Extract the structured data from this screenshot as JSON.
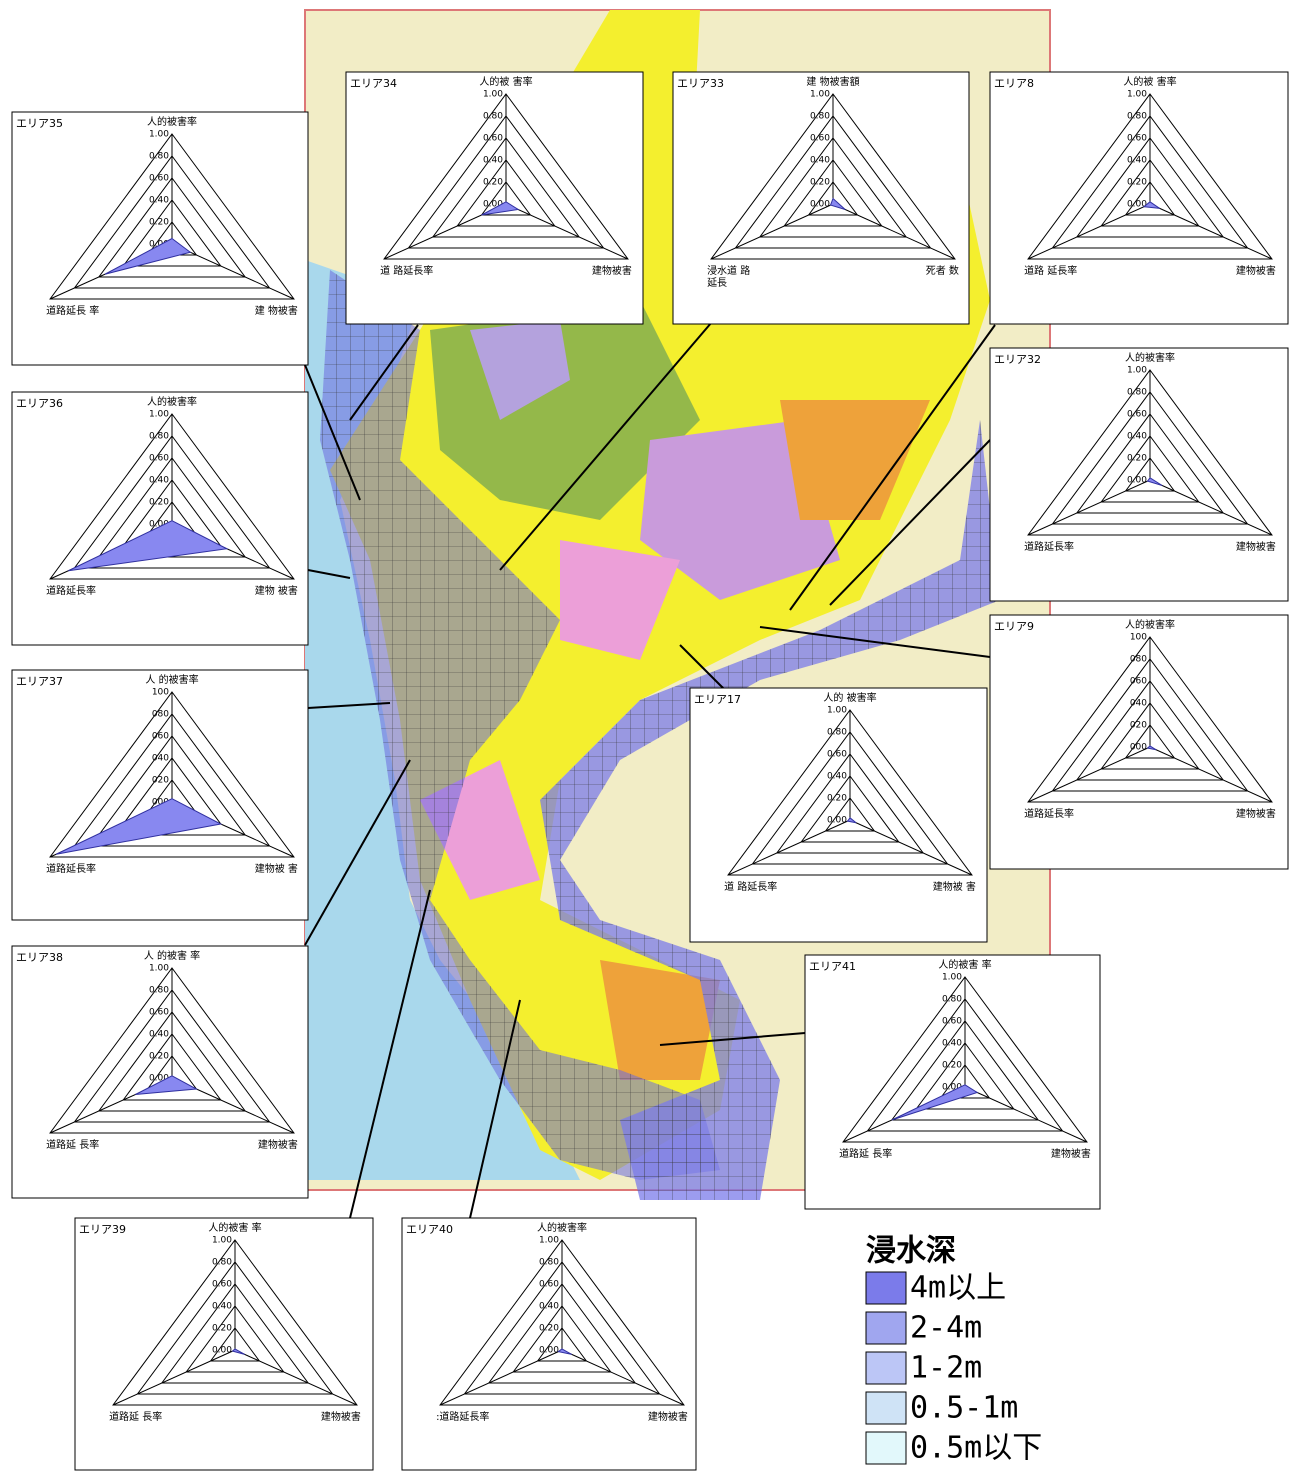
{
  "chart_data": [
    {
      "type": "radar",
      "title": "エリア35",
      "categories": [
        "人的被害率",
        "建 物被害",
        "道路延長 率"
      ],
      "values": [
        0.05,
        0.15,
        0.55
      ],
      "color": "#8888f0",
      "rlim": [
        0,
        1
      ],
      "rticks": [
        {
          "value": 1,
          "label": "1.00"
        },
        {
          "value": 0.8,
          "label": "0.80"
        },
        {
          "value": 0.6,
          "label": "0.60"
        },
        {
          "value": 0.4,
          "label": "0.40"
        },
        {
          "value": 0.2,
          "label": "0.20"
        },
        {
          "value": 0,
          "label": "0.00"
        }
      ]
    },
    {
      "type": "radar",
      "title": "エリア36",
      "categories": [
        "人的被害率",
        "建物 被害",
        "道路延長率"
      ],
      "values": [
        0.03,
        0.45,
        0.85
      ],
      "color": "#8888f0",
      "rlim": [
        0,
        1
      ],
      "rticks": [
        {
          "value": 1,
          "label": "1.00"
        },
        {
          "value": 0.8,
          "label": "0.80"
        },
        {
          "value": 0.6,
          "label": "0.60"
        },
        {
          "value": 0.4,
          "label": "0.40"
        },
        {
          "value": 0.2,
          "label": "0.20"
        },
        {
          "value": 0,
          "label": "0.00"
        }
      ]
    },
    {
      "type": "radar",
      "title": "エリア37",
      "categories": [
        "人 的被害率",
        "建物被 害",
        "道路延長率"
      ],
      "values": [
        0.03,
        0.4,
        0.95
      ],
      "color": "#8888f0",
      "rlim": [
        0,
        1
      ],
      "rticks": [
        {
          "value": 1,
          "label": "100"
        },
        {
          "value": 0.8,
          "label": "080"
        },
        {
          "value": 0.6,
          "label": "060"
        },
        {
          "value": 0.4,
          "label": "040"
        },
        {
          "value": 0.2,
          "label": "020"
        },
        {
          "value": 0,
          "label": "000"
        }
      ]
    },
    {
      "type": "radar",
      "title": "エリア38",
      "categories": [
        "人 的被害 率",
        "建物被害",
        "道路延 長率"
      ],
      "values": [
        0.02,
        0.2,
        0.3
      ],
      "color": "#8888f0",
      "rlim": [
        0,
        1
      ],
      "rticks": [
        {
          "value": 1,
          "label": "1.00"
        },
        {
          "value": 0.8,
          "label": "0.80"
        },
        {
          "value": 0.6,
          "label": "0.60"
        },
        {
          "value": 0.4,
          "label": "0.40"
        },
        {
          "value": 0.2,
          "label": "0.20"
        },
        {
          "value": 0,
          "label": "0.00"
        }
      ]
    },
    {
      "type": "radar",
      "title": "エリア39",
      "categories": [
        "人的被害 率",
        "建物被害",
        "道路延 長率"
      ],
      "values": [
        0.01,
        0.08,
        0.02
      ],
      "color": "#8888f0",
      "rlim": [
        0,
        1
      ],
      "rticks": [
        {
          "value": 1,
          "label": "1.00"
        },
        {
          "value": 0.8,
          "label": "0.80"
        },
        {
          "value": 0.6,
          "label": "0.60"
        },
        {
          "value": 0.4,
          "label": "0.40"
        },
        {
          "value": 0.2,
          "label": "0.20"
        },
        {
          "value": 0,
          "label": "0.00"
        }
      ]
    },
    {
      "type": "radar",
      "title": "エリア40",
      "categories": [
        "人的被害率",
        "建物被害",
        ":道路延長率"
      ],
      "values": [
        0.01,
        0.08,
        0.03
      ],
      "color": "#8888f0",
      "rlim": [
        0,
        1
      ],
      "rticks": [
        {
          "value": 1,
          "label": "1.00"
        },
        {
          "value": 0.8,
          "label": "0.80"
        },
        {
          "value": 0.6,
          "label": "0.60"
        },
        {
          "value": 0.4,
          "label": "0.40"
        },
        {
          "value": 0.2,
          "label": "0.20"
        },
        {
          "value": 0,
          "label": "0.00"
        }
      ]
    },
    {
      "type": "radar",
      "title": "エリア41",
      "categories": [
        "人的被害 率",
        "建物被害",
        "道路延 長率"
      ],
      "values": [
        0.02,
        0.1,
        0.6
      ],
      "color": "#8888f0",
      "rlim": [
        0,
        1
      ],
      "rticks": [
        {
          "value": 1,
          "label": "1.00"
        },
        {
          "value": 0.8,
          "label": "0.80"
        },
        {
          "value": 0.6,
          "label": "0.60"
        },
        {
          "value": 0.4,
          "label": "0.40"
        },
        {
          "value": 0.2,
          "label": "0.20"
        },
        {
          "value": 0,
          "label": "0.00"
        }
      ]
    },
    {
      "type": "radar",
      "title": "エリア34",
      "categories": [
        "人的被 害率",
        "建物被害",
        "道 路延長率"
      ],
      "values": [
        0.02,
        0.1,
        0.2
      ],
      "color": "#8888f0",
      "rlim": [
        0,
        1
      ],
      "rticks": [
        {
          "value": 1,
          "label": "1.00"
        },
        {
          "value": 0.8,
          "label": "0.80"
        },
        {
          "value": 0.6,
          "label": "0.60"
        },
        {
          "value": 0.4,
          "label": "0.40"
        },
        {
          "value": 0.2,
          "label": "0.20"
        },
        {
          "value": 0,
          "label": "0.00"
        }
      ]
    },
    {
      "type": "radar",
      "title": "エリア33",
      "categories": [
        "建 物被害額",
        "死者 数",
        "浸水道 路\n延長"
      ],
      "values": [
        0.05,
        0.1,
        0.02
      ],
      "color": "#8888f0",
      "rlim": [
        0,
        1
      ],
      "rticks": [
        {
          "value": 1,
          "label": "1.00"
        },
        {
          "value": 0.8,
          "label": "0.80"
        },
        {
          "value": 0.6,
          "label": "0.60"
        },
        {
          "value": 0.4,
          "label": "0.40"
        },
        {
          "value": 0.2,
          "label": "0.20"
        },
        {
          "value": 0,
          "label": "0.00"
        }
      ]
    },
    {
      "type": "radar",
      "title": "エリア8",
      "categories": [
        "人的被 害率",
        "建物被害",
        "道路 延長率"
      ],
      "values": [
        0.02,
        0.08,
        0.05
      ],
      "color": "#8888f0",
      "rlim": [
        0,
        1
      ],
      "rticks": [
        {
          "value": 1,
          "label": "1.00"
        },
        {
          "value": 0.8,
          "label": "0.80"
        },
        {
          "value": 0.6,
          "label": "0.60"
        },
        {
          "value": 0.4,
          "label": "0.40"
        },
        {
          "value": 0.2,
          "label": "0.20"
        },
        {
          "value": 0,
          "label": "0.00"
        }
      ]
    },
    {
      "type": "radar",
      "title": "エリア32",
      "categories": [
        "人的被害率",
        "建物被害",
        "道路延長率"
      ],
      "values": [
        0.02,
        0.1,
        0.02
      ],
      "color": "#8888f0",
      "rlim": [
        0,
        1
      ],
      "rticks": [
        {
          "value": 1,
          "label": "1.00"
        },
        {
          "value": 0.8,
          "label": "0.80"
        },
        {
          "value": 0.6,
          "label": "0.60"
        },
        {
          "value": 0.4,
          "label": "0.40"
        },
        {
          "value": 0.2,
          "label": "0.20"
        },
        {
          "value": 0,
          "label": "0.00"
        }
      ]
    },
    {
      "type": "radar",
      "title": "エリア9",
      "categories": [
        "人的被害率",
        "建物被害",
        "道路延長率"
      ],
      "values": [
        0.01,
        0.05,
        0.02
      ],
      "color": "#8888f0",
      "rlim": [
        0,
        1
      ],
      "rticks": [
        {
          "value": 1,
          "label": "100"
        },
        {
          "value": 0.8,
          "label": "080"
        },
        {
          "value": 0.6,
          "label": "060"
        },
        {
          "value": 0.4,
          "label": "040"
        },
        {
          "value": 0.2,
          "label": "020"
        },
        {
          "value": 0,
          "label": "000"
        }
      ]
    },
    {
      "type": "radar",
      "title": "エリア17",
      "categories": [
        "人的 被害率",
        "建物被 害",
        "道 路延長率"
      ],
      "values": [
        0.02,
        0.05,
        0.02
      ],
      "color": "#8888f0",
      "rlim": [
        0,
        1
      ],
      "rticks": [
        {
          "value": 1,
          "label": "1.00"
        },
        {
          "value": 0.8,
          "label": "0.80"
        },
        {
          "value": 0.6,
          "label": "0.60"
        },
        {
          "value": 0.4,
          "label": "0.40"
        },
        {
          "value": 0.2,
          "label": "0.20"
        },
        {
          "value": 0,
          "label": "0.00"
        }
      ]
    }
  ],
  "legend": {
    "title": "浸水深",
    "items": [
      {
        "label": "4m以上",
        "color": "#7b7bea"
      },
      {
        "label": "2-4m",
        "color": "#a0a6ef"
      },
      {
        "label": "1-2m",
        "color": "#bcc6f6"
      },
      {
        "label": "0.5-1m",
        "color": "#cfe3f6"
      },
      {
        "label": "0.5m以下",
        "color": "#e2f8fb"
      }
    ]
  }
}
